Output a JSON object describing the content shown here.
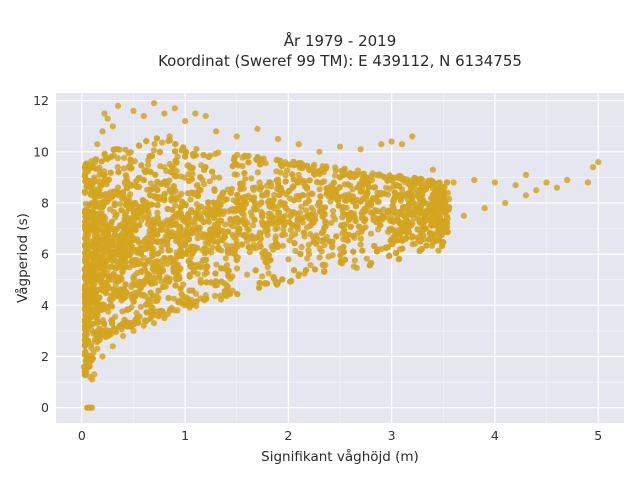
{
  "chart_data": {
    "type": "scatter",
    "title_lines": [
      "År 1979 - 2019",
      "Koordinat (Sweref 99 TM): E 439112, N 6134755"
    ],
    "xlabel": "Signifikant våghöjd (m)",
    "ylabel": "Vågperiod (s)",
    "xlim": [
      -0.25,
      5.25
    ],
    "ylim": [
      -0.6,
      12.3
    ],
    "x_ticks": [
      0,
      1,
      2,
      3,
      4,
      5
    ],
    "y_ticks": [
      0,
      2,
      4,
      6,
      8,
      10,
      12
    ],
    "grid": true,
    "legend": "none",
    "marker_color": "#d4a420",
    "plot_background": "#e5e6f0",
    "grid_color": "#ffffff",
    "points": [
      [
        0.05,
        0.0
      ],
      [
        0.06,
        0.0
      ],
      [
        0.07,
        0.0
      ],
      [
        0.08,
        0.0
      ],
      [
        0.1,
        0.0
      ],
      [
        0.02,
        1.6
      ],
      [
        0.04,
        1.8
      ],
      [
        0.08,
        1.2
      ],
      [
        0.1,
        1.1
      ],
      [
        0.12,
        1.3
      ],
      [
        0.05,
        2.5
      ],
      [
        0.06,
        3.5
      ],
      [
        0.07,
        4.5
      ],
      [
        0.08,
        5.5
      ],
      [
        0.09,
        6.5
      ],
      [
        0.1,
        7.5
      ],
      [
        0.1,
        8.3
      ],
      [
        0.12,
        9.0
      ],
      [
        0.13,
        9.6
      ],
      [
        0.15,
        10.3
      ],
      [
        0.2,
        10.8
      ],
      [
        0.25,
        11.3
      ],
      [
        0.3,
        11.0
      ],
      [
        0.22,
        11.5
      ],
      [
        0.35,
        11.8
      ],
      [
        0.5,
        11.6
      ],
      [
        0.6,
        11.4
      ],
      [
        0.7,
        11.9
      ],
      [
        0.8,
        11.5
      ],
      [
        0.9,
        11.7
      ],
      [
        1.0,
        11.2
      ],
      [
        1.1,
        11.5
      ],
      [
        1.2,
        11.4
      ],
      [
        1.3,
        10.8
      ],
      [
        1.5,
        10.6
      ],
      [
        1.7,
        10.9
      ],
      [
        1.9,
        10.5
      ],
      [
        2.1,
        10.3
      ],
      [
        2.3,
        10.0
      ],
      [
        2.5,
        10.2
      ],
      [
        2.7,
        10.1
      ],
      [
        2.9,
        10.3
      ],
      [
        3.0,
        10.4
      ],
      [
        3.1,
        10.3
      ],
      [
        3.2,
        10.6
      ],
      [
        3.4,
        9.3
      ],
      [
        3.6,
        8.8
      ],
      [
        3.8,
        8.9
      ],
      [
        4.0,
        8.8
      ],
      [
        4.2,
        8.7
      ],
      [
        4.3,
        9.1
      ],
      [
        4.4,
        8.5
      ],
      [
        4.5,
        8.8
      ],
      [
        4.6,
        8.6
      ],
      [
        4.7,
        8.9
      ],
      [
        4.9,
        8.8
      ],
      [
        5.0,
        9.6
      ],
      [
        4.95,
        9.4
      ],
      [
        2.5,
        6.2
      ],
      [
        2.8,
        6.8
      ],
      [
        3.0,
        7.0
      ],
      [
        3.2,
        7.2
      ],
      [
        3.4,
        7.3
      ],
      [
        3.5,
        7.1
      ],
      [
        3.7,
        7.5
      ],
      [
        3.9,
        7.8
      ],
      [
        4.1,
        8.0
      ],
      [
        4.3,
        8.3
      ],
      [
        0.15,
        2.3
      ],
      [
        0.2,
        2.0
      ],
      [
        0.3,
        2.4
      ],
      [
        0.4,
        2.8
      ],
      [
        0.5,
        3.0
      ],
      [
        0.6,
        3.2
      ],
      [
        0.7,
        3.3
      ],
      [
        0.8,
        3.5
      ],
      [
        0.9,
        3.8
      ],
      [
        1.0,
        4.0
      ],
      [
        1.1,
        4.1
      ],
      [
        1.2,
        4.4
      ],
      [
        1.4,
        4.8
      ],
      [
        1.6,
        5.2
      ],
      [
        1.8,
        5.5
      ],
      [
        2.0,
        5.8
      ],
      [
        2.2,
        6.0
      ]
    ]
  }
}
